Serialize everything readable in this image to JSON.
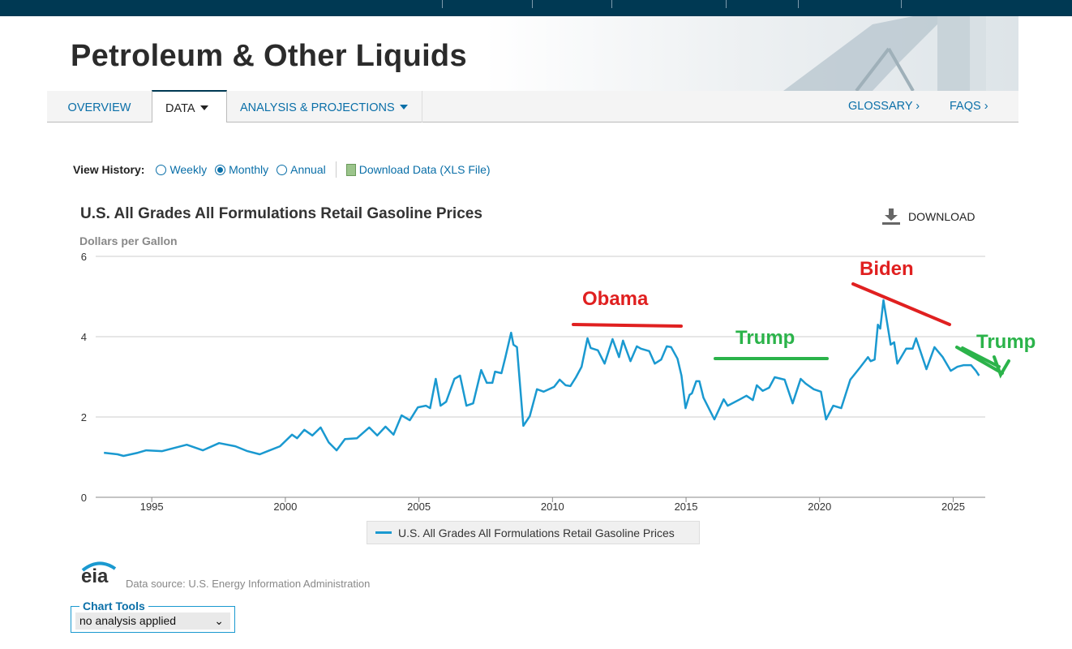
{
  "header": {
    "title": "Petroleum & Other Liquids"
  },
  "nav": {
    "tabs": [
      {
        "label": "OVERVIEW"
      },
      {
        "label": "DATA"
      },
      {
        "label": "ANALYSIS & PROJECTIONS"
      }
    ],
    "glossary": "GLOSSARY ›",
    "faqs": "FAQS ›"
  },
  "view_history": {
    "label": "View History:",
    "options": [
      "Weekly",
      "Monthly",
      "Annual"
    ],
    "selected": "Monthly",
    "download": "Download Data (XLS File)"
  },
  "download_label": "DOWNLOAD",
  "source": "Data source: U.S. Energy Information Administration",
  "logo": "eia",
  "chart_tools": {
    "legend": "Chart Tools",
    "value": "no analysis applied"
  },
  "annotations": {
    "obama": "Obama",
    "trump1": "Trump",
    "biden": "Biden",
    "trump2": "Trump"
  },
  "colors": {
    "line": "#1a99d0",
    "red": "#e02020",
    "green": "#2bb34a",
    "nav": "#003953"
  },
  "chart_data": {
    "type": "line",
    "title": "U.S. All Grades All Formulations Retail Gasoline Prices",
    "ylabel": "Dollars per Gallon",
    "xlabel": "",
    "ylim": [
      0,
      6
    ],
    "xlim": [
      1992.9,
      2026.2
    ],
    "yticks": [
      "0",
      "2",
      "4",
      "6"
    ],
    "xticks": [
      "1995",
      "2000",
      "2005",
      "2010",
      "2015",
      "2020",
      "2025"
    ],
    "legend": "U.S. All Grades All Formulations Retail Gasoline Prices",
    "legend_position": "bottom",
    "grid": true,
    "series": [
      {
        "name": "U.S. All Grades All Formulations Retail Gasoline Prices",
        "x": [
          1993.21,
          1993.72,
          1993.94,
          1994.48,
          1994.79,
          1995.39,
          1996.31,
          1996.91,
          1997.52,
          1998.13,
          1998.58,
          1999.04,
          1999.34,
          1999.8,
          2000.25,
          2000.44,
          2000.71,
          2001.01,
          2001.32,
          2001.62,
          2001.92,
          2002.23,
          2002.68,
          2003.14,
          2003.44,
          2003.75,
          2004.05,
          2004.35,
          2004.66,
          2004.96,
          2005.26,
          2005.42,
          2005.63,
          2005.81,
          2006.02,
          2006.33,
          2006.54,
          2006.78,
          2007.03,
          2007.33,
          2007.54,
          2007.75,
          2007.85,
          2008.09,
          2008.24,
          2008.45,
          2008.54,
          2008.67,
          2008.91,
          2009.15,
          2009.42,
          2009.67,
          2010.06,
          2010.27,
          2010.49,
          2010.67,
          2010.88,
          2011.09,
          2011.31,
          2011.43,
          2011.7,
          2011.95,
          2012.25,
          2012.49,
          2012.64,
          2012.92,
          2013.16,
          2013.31,
          2013.62,
          2013.83,
          2014.07,
          2014.28,
          2014.44,
          2014.68,
          2014.83,
          2014.98,
          2015.13,
          2015.22,
          2015.38,
          2015.5,
          2015.65,
          2016.06,
          2016.41,
          2016.56,
          2017.02,
          2017.26,
          2017.5,
          2017.65,
          2017.87,
          2018.11,
          2018.32,
          2018.69,
          2018.99,
          2019.29,
          2019.48,
          2019.78,
          2020.05,
          2020.24,
          2020.51,
          2020.81,
          2021.15,
          2021.51,
          2021.81,
          2021.91,
          2022.06,
          2022.18,
          2022.27,
          2022.39,
          2022.66,
          2022.79,
          2022.91,
          2023.24,
          2023.48,
          2023.61,
          2024.0,
          2024.3,
          2024.61,
          2024.91,
          2025.16,
          2025.4,
          2025.67,
          2025.85,
          2025.97
        ],
        "values": [
          1.11,
          1.07,
          1.03,
          1.11,
          1.17,
          1.15,
          1.31,
          1.17,
          1.35,
          1.27,
          1.15,
          1.07,
          1.15,
          1.27,
          1.56,
          1.47,
          1.68,
          1.54,
          1.74,
          1.37,
          1.17,
          1.45,
          1.47,
          1.74,
          1.54,
          1.76,
          1.56,
          2.04,
          1.92,
          2.24,
          2.28,
          2.22,
          2.95,
          2.28,
          2.38,
          2.95,
          3.03,
          2.28,
          2.34,
          3.17,
          2.85,
          2.85,
          3.13,
          3.09,
          3.49,
          4.1,
          3.8,
          3.74,
          1.78,
          2.02,
          2.69,
          2.63,
          2.75,
          2.93,
          2.79,
          2.77,
          2.99,
          3.25,
          3.96,
          3.72,
          3.66,
          3.33,
          3.94,
          3.49,
          3.9,
          3.39,
          3.76,
          3.7,
          3.64,
          3.33,
          3.43,
          3.76,
          3.74,
          3.45,
          3.03,
          2.22,
          2.55,
          2.59,
          2.89,
          2.89,
          2.48,
          1.94,
          2.44,
          2.28,
          2.44,
          2.53,
          2.42,
          2.79,
          2.65,
          2.73,
          2.99,
          2.93,
          2.34,
          2.95,
          2.83,
          2.69,
          2.63,
          1.94,
          2.28,
          2.22,
          2.93,
          3.23,
          3.49,
          3.39,
          3.43,
          4.3,
          4.2,
          4.91,
          3.8,
          3.86,
          3.33,
          3.7,
          3.7,
          3.96,
          3.19,
          3.74,
          3.49,
          3.15,
          3.25,
          3.29,
          3.29,
          3.15,
          3.03
        ]
      }
    ]
  }
}
